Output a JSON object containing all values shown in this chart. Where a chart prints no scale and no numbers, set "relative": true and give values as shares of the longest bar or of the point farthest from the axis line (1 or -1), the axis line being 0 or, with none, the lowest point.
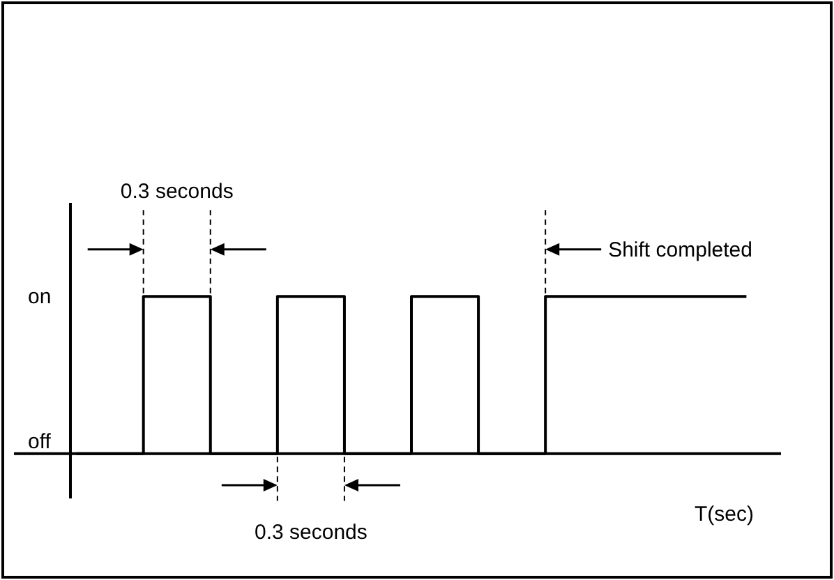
{
  "chart_data": {
    "type": "step",
    "relative": true,
    "categories": [
      null,
      null,
      null,
      null,
      null,
      null,
      null,
      null,
      null,
      null,
      null
    ],
    "series": [
      {
        "color": "#000000",
        "values": [
          0,
          1,
          0,
          1,
          0,
          1,
          0,
          1,
          1,
          1,
          1
        ]
      }
    ],
    "xlabel": "T(sec)",
    "annotations": [
      "on",
      "off",
      "0.3 seconds",
      "0.3 seconds",
      "Shift completed"
    ]
  }
}
